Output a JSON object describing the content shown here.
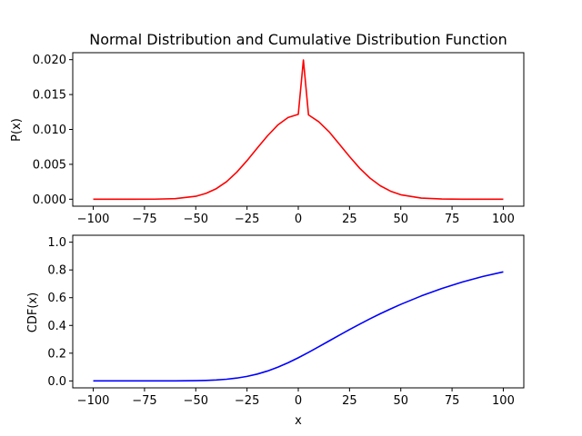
{
  "chart_data": [
    {
      "type": "line",
      "title": "Normal Distribution and Cumulative Distribution Function",
      "xlabel": "",
      "ylabel": "P(x)",
      "xlim": [
        -110,
        110
      ],
      "ylim": [
        -0.001,
        0.021
      ],
      "x_ticks": [
        -100,
        -75,
        -50,
        -25,
        0,
        25,
        50,
        75,
        100
      ],
      "x_tick_labels": [
        "−100",
        "−75",
        "−50",
        "−25",
        "0",
        "25",
        "50",
        "75",
        "100"
      ],
      "y_ticks": [
        0.0,
        0.005,
        0.01,
        0.015,
        0.02
      ],
      "y_tick_labels": [
        "0.000",
        "0.005",
        "0.010",
        "0.015",
        "0.020"
      ],
      "grid": false,
      "series": [
        {
          "color": "#ff0000",
          "x": [
            -100,
            -90,
            -80,
            -70,
            -60,
            -50,
            -45,
            -40,
            -35,
            -30,
            -25,
            -20,
            -15,
            -10,
            -5,
            0,
            2.5,
            5,
            10,
            15,
            20,
            25,
            30,
            35,
            40,
            45,
            50,
            60,
            70,
            80,
            90,
            100
          ],
          "y": [
            0.0,
            0.0,
            0.0,
            1e-05,
            8e-05,
            0.00042,
            0.00084,
            0.00151,
            0.00251,
            0.00387,
            0.00553,
            0.00733,
            0.00909,
            0.01063,
            0.01171,
            0.01217,
            0.01995,
            0.01208,
            0.0111,
            0.00967,
            0.0079,
            0.00611,
            0.00443,
            0.00302,
            0.00193,
            0.00115,
            0.00064,
            0.00016,
            3e-05,
            0.0,
            0.0,
            0.0
          ]
        }
      ]
    },
    {
      "type": "line",
      "title": "",
      "xlabel": "x",
      "ylabel": "CDF(x)",
      "xlim": [
        -110,
        110
      ],
      "ylim": [
        -0.05,
        1.05
      ],
      "x_ticks": [
        -100,
        -75,
        -50,
        -25,
        0,
        25,
        50,
        75,
        100
      ],
      "x_tick_labels": [
        "−100",
        "−75",
        "−50",
        "−25",
        "0",
        "25",
        "50",
        "75",
        "100"
      ],
      "y_ticks": [
        0.0,
        0.2,
        0.4,
        0.6,
        0.8,
        1.0
      ],
      "y_tick_labels": [
        "0.0",
        "0.2",
        "0.4",
        "0.6",
        "0.8",
        "1.0"
      ],
      "grid": false,
      "series": [
        {
          "color": "#0000ff",
          "x": [
            -100,
            -90,
            -80,
            -70,
            -60,
            -50,
            -45,
            -40,
            -35,
            -30,
            -25,
            -20,
            -15,
            -10,
            -5,
            0,
            5,
            10,
            15,
            20,
            25,
            30,
            35,
            40,
            45,
            50,
            60,
            70,
            80,
            90,
            100
          ],
          "y": [
            0.0,
            0.0,
            0.0,
            6e-05,
            0.00039,
            0.00187,
            0.00369,
            0.0069,
            0.01222,
            0.02052,
            0.03264,
            0.04947,
            0.07148,
            0.09876,
            0.13084,
            0.16689,
            0.20584,
            0.24658,
            0.28807,
            0.32949,
            0.3702,
            0.40976,
            0.44788,
            0.48436,
            0.51907,
            0.55199,
            0.61257,
            0.66619,
            0.71287,
            0.75271,
            0.78618
          ]
        }
      ]
    }
  ]
}
